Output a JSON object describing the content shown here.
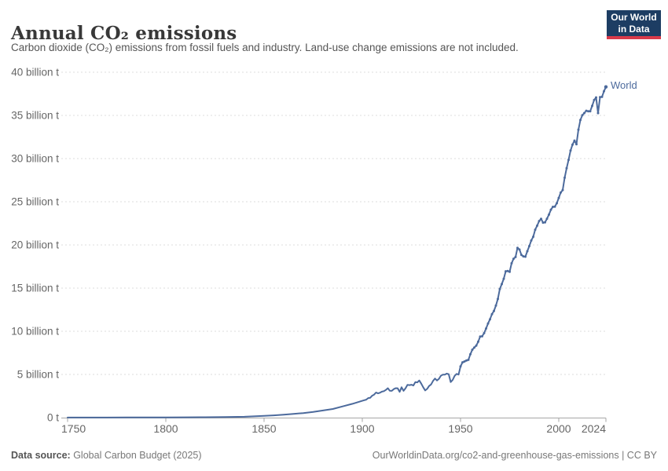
{
  "header": {
    "title": "Annual CO₂ emissions",
    "subtitle": "Carbon dioxide (CO₂) emissions from fossil fuels and industry. Land-use change emissions are not included.",
    "logo": {
      "line1": "Our World",
      "line2": "in Data",
      "bg_color": "#1d3d63",
      "accent_color": "#d93a4a"
    }
  },
  "footer": {
    "source_label": "Data source:",
    "source_value": " Global Carbon Budget (2025)",
    "right_text": "OurWorldinData.org/co2-and-greenhouse-gas-emissions | CC BY"
  },
  "chart_data": {
    "type": "line",
    "title": "Annual CO₂ emissions",
    "xlabel": "",
    "ylabel": "",
    "unit": "billion tonnes of CO₂",
    "xlim": [
      1750,
      2024
    ],
    "ylim": [
      0,
      40
    ],
    "grid": "horizontal-dashed",
    "legend_position": "end-of-line-label",
    "x_ticks": [
      1750,
      1800,
      1850,
      1900,
      1950,
      2000,
      2024
    ],
    "y_ticks": [
      {
        "value": 0,
        "label": "0 t"
      },
      {
        "value": 5,
        "label": "5 billion t"
      },
      {
        "value": 10,
        "label": "10 billion t"
      },
      {
        "value": 15,
        "label": "15 billion t"
      },
      {
        "value": 20,
        "label": "20 billion t"
      },
      {
        "value": 25,
        "label": "25 billion t"
      },
      {
        "value": 30,
        "label": "30 billion t"
      },
      {
        "value": 35,
        "label": "35 billion t"
      },
      {
        "value": 40,
        "label": "40 billion t"
      }
    ],
    "series": [
      {
        "name": "World",
        "color": "#4c6a9c",
        "points": [
          [
            1750,
            0.01
          ],
          [
            1760,
            0.011
          ],
          [
            1770,
            0.013
          ],
          [
            1780,
            0.016
          ],
          [
            1790,
            0.02
          ],
          [
            1800,
            0.03
          ],
          [
            1810,
            0.04
          ],
          [
            1820,
            0.05
          ],
          [
            1830,
            0.07
          ],
          [
            1840,
            0.1
          ],
          [
            1850,
            0.2
          ],
          [
            1855,
            0.26
          ],
          [
            1860,
            0.34
          ],
          [
            1865,
            0.43
          ],
          [
            1870,
            0.53
          ],
          [
            1875,
            0.66
          ],
          [
            1880,
            0.83
          ],
          [
            1885,
            1.0
          ],
          [
            1890,
            1.3
          ],
          [
            1895,
            1.6
          ],
          [
            1900,
            1.95
          ],
          [
            1901,
            2.02
          ],
          [
            1902,
            2.08
          ],
          [
            1903,
            2.26
          ],
          [
            1904,
            2.29
          ],
          [
            1905,
            2.54
          ],
          [
            1906,
            2.66
          ],
          [
            1907,
            2.91
          ],
          [
            1908,
            2.81
          ],
          [
            1909,
            2.88
          ],
          [
            1910,
            3.01
          ],
          [
            1911,
            3.06
          ],
          [
            1912,
            3.21
          ],
          [
            1913,
            3.41
          ],
          [
            1914,
            3.11
          ],
          [
            1915,
            3.1
          ],
          [
            1916,
            3.3
          ],
          [
            1917,
            3.41
          ],
          [
            1918,
            3.4
          ],
          [
            1919,
            2.98
          ],
          [
            1920,
            3.52
          ],
          [
            1921,
            3.1
          ],
          [
            1922,
            3.4
          ],
          [
            1923,
            3.79
          ],
          [
            1924,
            3.76
          ],
          [
            1925,
            3.81
          ],
          [
            1926,
            3.72
          ],
          [
            1927,
            4.11
          ],
          [
            1928,
            4.08
          ],
          [
            1929,
            4.3
          ],
          [
            1930,
            3.94
          ],
          [
            1931,
            3.52
          ],
          [
            1932,
            3.15
          ],
          [
            1933,
            3.33
          ],
          [
            1934,
            3.66
          ],
          [
            1935,
            3.84
          ],
          [
            1936,
            4.25
          ],
          [
            1937,
            4.53
          ],
          [
            1938,
            4.3
          ],
          [
            1939,
            4.49
          ],
          [
            1940,
            4.85
          ],
          [
            1941,
            4.97
          ],
          [
            1942,
            4.98
          ],
          [
            1943,
            5.1
          ],
          [
            1944,
            5.03
          ],
          [
            1945,
            4.12
          ],
          [
            1946,
            4.36
          ],
          [
            1947,
            4.84
          ],
          [
            1948,
            5.06
          ],
          [
            1949,
            4.98
          ],
          [
            1950,
            5.93
          ],
          [
            1951,
            6.4
          ],
          [
            1952,
            6.5
          ],
          [
            1953,
            6.62
          ],
          [
            1954,
            6.69
          ],
          [
            1955,
            7.34
          ],
          [
            1956,
            7.86
          ],
          [
            1957,
            8.12
          ],
          [
            1958,
            8.34
          ],
          [
            1959,
            8.79
          ],
          [
            1960,
            9.39
          ],
          [
            1961,
            9.42
          ],
          [
            1962,
            9.78
          ],
          [
            1963,
            10.32
          ],
          [
            1964,
            10.9
          ],
          [
            1965,
            11.39
          ],
          [
            1966,
            11.98
          ],
          [
            1967,
            12.35
          ],
          [
            1968,
            12.97
          ],
          [
            1969,
            13.75
          ],
          [
            1970,
            14.9
          ],
          [
            1971,
            15.46
          ],
          [
            1972,
            16.08
          ],
          [
            1973,
            16.95
          ],
          [
            1974,
            16.98
          ],
          [
            1975,
            16.89
          ],
          [
            1976,
            17.87
          ],
          [
            1977,
            18.4
          ],
          [
            1978,
            18.6
          ],
          [
            1979,
            19.66
          ],
          [
            1980,
            19.46
          ],
          [
            1981,
            18.84
          ],
          [
            1982,
            18.67
          ],
          [
            1983,
            18.64
          ],
          [
            1984,
            19.27
          ],
          [
            1985,
            19.86
          ],
          [
            1986,
            20.51
          ],
          [
            1987,
            20.95
          ],
          [
            1988,
            21.76
          ],
          [
            1989,
            22.23
          ],
          [
            1990,
            22.76
          ],
          [
            1991,
            23.03
          ],
          [
            1992,
            22.58
          ],
          [
            1993,
            22.61
          ],
          [
            1994,
            23.04
          ],
          [
            1995,
            23.51
          ],
          [
            1996,
            24.08
          ],
          [
            1997,
            24.41
          ],
          [
            1998,
            24.43
          ],
          [
            1999,
            24.83
          ],
          [
            2000,
            25.45
          ],
          [
            2001,
            26.07
          ],
          [
            2002,
            26.35
          ],
          [
            2003,
            27.78
          ],
          [
            2004,
            28.88
          ],
          [
            2005,
            29.85
          ],
          [
            2006,
            30.93
          ],
          [
            2007,
            31.62
          ],
          [
            2008,
            32.08
          ],
          [
            2009,
            31.66
          ],
          [
            2010,
            33.34
          ],
          [
            2011,
            34.46
          ],
          [
            2012,
            35.02
          ],
          [
            2013,
            35.27
          ],
          [
            2014,
            35.54
          ],
          [
            2015,
            35.47
          ],
          [
            2016,
            35.48
          ],
          [
            2017,
            36.1
          ],
          [
            2018,
            36.78
          ],
          [
            2019,
            37.08
          ],
          [
            2020,
            35.26
          ],
          [
            2021,
            37.12
          ],
          [
            2022,
            37.15
          ],
          [
            2023,
            37.79
          ],
          [
            2024,
            38.3
          ]
        ]
      }
    ]
  },
  "colors": {
    "line": "#4c6a9c",
    "grid": "#dcdcdc",
    "axis": "#a6a6a6",
    "tick_text": "#666666"
  }
}
